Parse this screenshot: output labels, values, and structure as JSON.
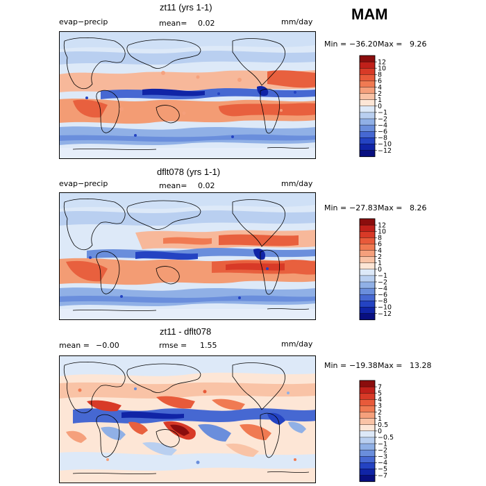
{
  "season": "MAM",
  "panels": [
    {
      "title": "zt11 (yrs 1-1)",
      "left_label": "evap−precip",
      "stat_label": "mean=",
      "stat_value": "0.02",
      "stat2_label": "",
      "stat2_value": "",
      "units": "mm/day",
      "min_label": "Min =",
      "min_value": "−36.20",
      "max_label": "Max =",
      "max_value": "9.26"
    },
    {
      "title": "dflt078 (yrs 1-1)",
      "left_label": "evap−precip",
      "stat_label": "mean=",
      "stat_value": "0.02",
      "stat2_label": "",
      "stat2_value": "",
      "units": "mm/day",
      "min_label": "Min =",
      "min_value": "−27.83",
      "max_label": "Max =",
      "max_value": "8.26"
    },
    {
      "title": "zt11 - dflt078",
      "left_label": "mean =",
      "left_value": "−0.00",
      "stat_label": "rmse =",
      "stat_value": "1.55",
      "units": "mm/day",
      "min_label": "Min =",
      "min_value": "−19.38",
      "max_label": "Max =",
      "max_value": "13.28"
    }
  ],
  "colorbars": [
    {
      "labels": [
        "12",
        "10",
        "8",
        "6",
        "4",
        "2",
        "1",
        "0",
        "−1",
        "−2",
        "−4",
        "−6",
        "−8",
        "−10",
        "−12"
      ],
      "colors": [
        "#8b0d0d",
        "#c0201a",
        "#d83a27",
        "#e85a3a",
        "#f07a52",
        "#f5a07c",
        "#f9c3a6",
        "#fde6d6",
        "#dde9f8",
        "#b9cff0",
        "#90b0e6",
        "#6a8edc",
        "#4668d2",
        "#2443c2",
        "#1024a6",
        "#080f80"
      ]
    },
    {
      "labels": [
        "12",
        "10",
        "8",
        "6",
        "4",
        "2",
        "1",
        "0",
        "−1",
        "−2",
        "−4",
        "−6",
        "−8",
        "−10",
        "−12"
      ],
      "colors": [
        "#8b0d0d",
        "#c0201a",
        "#d83a27",
        "#e85a3a",
        "#f07a52",
        "#f5a07c",
        "#f9c3a6",
        "#fde6d6",
        "#dde9f8",
        "#b9cff0",
        "#90b0e6",
        "#6a8edc",
        "#4668d2",
        "#2443c2",
        "#1024a6",
        "#080f80"
      ]
    },
    {
      "labels": [
        "7",
        "5",
        "4",
        "3",
        "2",
        "1",
        "0.5",
        "0",
        "−0.5",
        "−1",
        "−2",
        "−3",
        "−4",
        "−5",
        "−7"
      ],
      "colors": [
        "#8b0d0d",
        "#c0201a",
        "#d83a27",
        "#e85a3a",
        "#f07a52",
        "#f5a07c",
        "#f9c3a6",
        "#fde6d6",
        "#dde9f8",
        "#b9cff0",
        "#90b0e6",
        "#6a8edc",
        "#4668d2",
        "#2443c2",
        "#1024a6",
        "#080f80"
      ]
    }
  ]
}
